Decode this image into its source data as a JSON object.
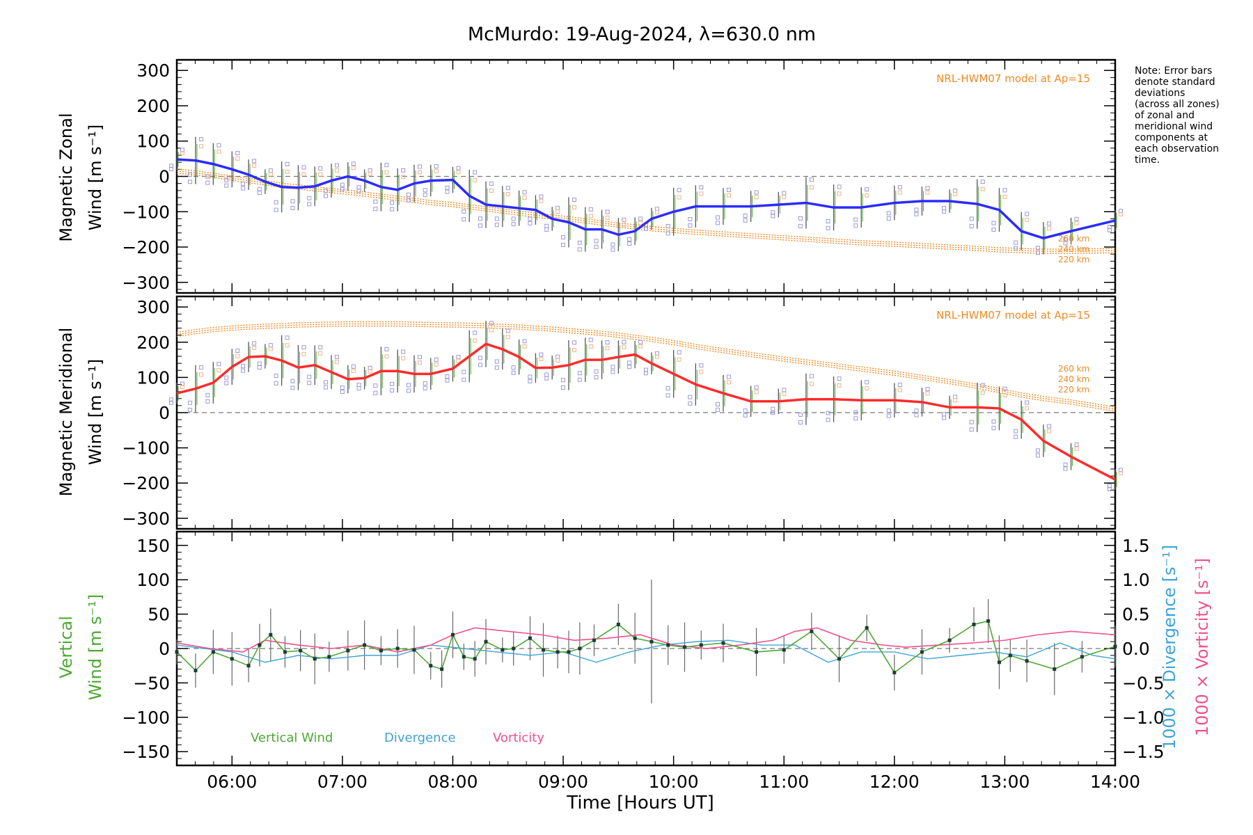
{
  "title": "McMurdo: 19-Aug-2024, λ=630.0 nm",
  "note": [
    "Note: Error bars",
    "denote standard",
    "deviations",
    "(across all zones)",
    "of zonal and",
    "meridional wind",
    "components at",
    "each observation",
    "time."
  ],
  "colors": {
    "zonal": "#2b2bff",
    "meridional": "#ff2a2a",
    "model": "#f08a24",
    "vertical": "#4da832",
    "divergence": "#3fa3d6",
    "vorticity": "#f0508c",
    "zones_blue": "#9999dd",
    "zones_orange": "#f5b08a",
    "errorbar": "#555555"
  },
  "chart_data": [
    {
      "type": "line",
      "ylabel": [
        "Magnetic Zonal",
        "Wind [m s⁻¹]"
      ],
      "ylim": [
        -330,
        330
      ],
      "yticks": [
        "300",
        "200",
        "100",
        "0",
        "−100",
        "−200",
        "−300"
      ],
      "model_label": "NRL-HWM07 model at Ap=15",
      "model_heights": [
        "260 km",
        "240 km",
        "220 km"
      ],
      "x": [
        5.5,
        5.67,
        5.83,
        6,
        6.15,
        6.3,
        6.45,
        6.6,
        6.75,
        6.9,
        7.05,
        7.2,
        7.35,
        7.5,
        7.65,
        7.8,
        8,
        8.15,
        8.3,
        8.45,
        8.6,
        8.75,
        8.9,
        9.05,
        9.2,
        9.35,
        9.5,
        9.65,
        9.8,
        10,
        10.2,
        10.45,
        10.7,
        10.95,
        11.2,
        11.45,
        11.7,
        12,
        12.25,
        12.5,
        12.75,
        12.95,
        13.15,
        13.35,
        13.6,
        14
      ],
      "series": [
        {
          "values": [
            48,
            45,
            35,
            20,
            5,
            -15,
            -30,
            -32,
            -28,
            -12,
            0,
            -12,
            -30,
            -38,
            -20,
            -12,
            -10,
            -55,
            -80,
            -85,
            -90,
            -95,
            -120,
            -130,
            -150,
            -150,
            -165,
            -155,
            -120,
            -100,
            -85,
            -85,
            -85,
            -80,
            -75,
            -88,
            -88,
            -75,
            -70,
            -70,
            -78,
            -95,
            -155,
            -175,
            -155,
            -125
          ]
        },
        {
          "values": [
            15,
            10,
            3,
            -5,
            -12,
            -18,
            -25,
            -30,
            -35,
            -40,
            -45,
            -50,
            -56,
            -62,
            -68,
            -74,
            -80,
            -86,
            -92,
            -98,
            -104,
            -110,
            -115,
            -120,
            -126,
            -132,
            -138,
            -143,
            -148,
            -153,
            -158,
            -163,
            -168,
            -173,
            -178,
            -183,
            -188,
            -192,
            -196,
            -200,
            -204,
            -208,
            -210,
            -212,
            -212,
            -210
          ]
        }
      ]
    },
    {
      "type": "line",
      "ylabel": [
        "Magnetic Meridional",
        "Wind [m s⁻¹]"
      ],
      "ylim": [
        -330,
        330
      ],
      "yticks": [
        "300",
        "200",
        "100",
        "0",
        "−100",
        "−200",
        "−300"
      ],
      "model_label": "NRL-HWM07 model at Ap=15",
      "model_heights": [
        "260 km",
        "240 km",
        "220 km"
      ],
      "x": [
        5.5,
        5.67,
        5.83,
        6,
        6.15,
        6.3,
        6.45,
        6.6,
        6.75,
        6.9,
        7.05,
        7.2,
        7.35,
        7.5,
        7.65,
        7.8,
        8,
        8.15,
        8.3,
        8.45,
        8.6,
        8.75,
        8.9,
        9.05,
        9.2,
        9.35,
        9.5,
        9.65,
        9.8,
        10,
        10.2,
        10.45,
        10.7,
        10.95,
        11.2,
        11.45,
        11.7,
        12,
        12.25,
        12.5,
        12.75,
        12.95,
        13.15,
        13.35,
        13.6,
        14
      ],
      "series": [
        {
          "values": [
            55,
            68,
            85,
            130,
            158,
            160,
            148,
            128,
            135,
            115,
            95,
            98,
            118,
            118,
            110,
            110,
            125,
            160,
            195,
            180,
            158,
            127,
            128,
            135,
            150,
            150,
            158,
            165,
            140,
            110,
            80,
            55,
            32,
            32,
            38,
            38,
            35,
            35,
            30,
            15,
            15,
            12,
            -20,
            -80,
            -125,
            -190
          ]
        },
        {
          "values": [
            222,
            230,
            236,
            240,
            243,
            245,
            247,
            249,
            250,
            251,
            252,
            252,
            252,
            252,
            251,
            250,
            249,
            248,
            247,
            245,
            243,
            240,
            237,
            233,
            229,
            225,
            220,
            214,
            208,
            199,
            188,
            176,
            165,
            154,
            144,
            134,
            124,
            112,
            100,
            88,
            75,
            63,
            50,
            40,
            30,
            10
          ]
        }
      ]
    },
    {
      "type": "line",
      "ylabel": [
        "Vertical",
        "Wind [m s⁻¹]"
      ],
      "ylim": [
        -170,
        170
      ],
      "yticks": [
        "150",
        "100",
        "50",
        "0",
        "−50",
        "−100",
        "−150"
      ],
      "y2label": [
        "1000 × Divergence [s⁻¹]",
        "1000 × Vorticity [s⁻¹]"
      ],
      "y2ticks": [
        "1.5",
        "1.0",
        "0.5",
        "0.0",
        "−0.5",
        "−1.0",
        "−1.5"
      ],
      "xticks": [
        "06:00",
        "07:00",
        "08:00",
        "09:00",
        "10:00",
        "11:00",
        "12:00",
        "13:00",
        "14:00"
      ],
      "xlim": [
        5.5,
        14.0
      ],
      "xlabel": "Time [Hours UT]",
      "legend": [
        "Vertical Wind",
        "Divergence",
        "Vorticity"
      ],
      "series": [
        {
          "x": [
            5.5,
            5.67,
            5.83,
            6,
            6.15,
            6.25,
            6.35,
            6.48,
            6.62,
            6.75,
            6.88,
            7.05,
            7.2,
            7.35,
            7.5,
            7.65,
            7.8,
            7.9,
            8,
            8.1,
            8.2,
            8.3,
            8.45,
            8.55,
            8.7,
            8.82,
            8.95,
            9.05,
            9.15,
            9.28,
            9.5,
            9.65,
            9.8,
            9.95,
            10.1,
            10.25,
            10.45,
            10.75,
            11,
            11.25,
            11.5,
            11.75,
            12,
            12.25,
            12.5,
            12.72,
            12.85,
            12.95,
            13.05,
            13.2,
            13.45,
            13.7,
            14
          ],
          "values": [
            -5,
            -32,
            -5,
            -15,
            -25,
            5,
            20,
            -5,
            -3,
            -15,
            -12,
            -3,
            5,
            -3,
            0,
            -2,
            -25,
            -30,
            20,
            -12,
            -15,
            10,
            -2,
            0,
            15,
            -2,
            -5,
            -5,
            0,
            12,
            35,
            15,
            10,
            5,
            2,
            5,
            8,
            -5,
            -2,
            25,
            -15,
            30,
            -35,
            -5,
            12,
            35,
            40,
            -20,
            -10,
            -18,
            -30,
            -12,
            3
          ]
        },
        {
          "x": [
            5.5,
            6,
            6.3,
            6.6,
            6.9,
            7.2,
            7.5,
            7.8,
            8.1,
            8.4,
            8.7,
            9,
            9.3,
            9.6,
            9.9,
            10.2,
            10.5,
            10.8,
            11.1,
            11.4,
            11.7,
            12,
            12.3,
            12.6,
            12.9,
            13.2,
            13.5,
            13.8,
            14
          ],
          "values": [
            0.05,
            -0.05,
            -0.2,
            -0.1,
            -0.15,
            -0.1,
            -0.1,
            0.05,
            0.0,
            -0.05,
            -0.1,
            -0.05,
            -0.2,
            -0.05,
            0.05,
            0.1,
            0.12,
            0.05,
            0.05,
            -0.2,
            -0.05,
            -0.05,
            -0.15,
            -0.1,
            -0.05,
            -0.12,
            0.08,
            -0.1,
            -0.15
          ]
        },
        {
          "x": [
            5.5,
            5.8,
            6.1,
            6.3,
            6.6,
            6.9,
            7.2,
            7.5,
            7.8,
            8.0,
            8.2,
            8.5,
            8.8,
            9.1,
            9.4,
            9.7,
            10.0,
            10.3,
            10.6,
            10.9,
            11.1,
            11.3,
            11.6,
            11.9,
            12.1,
            12.4,
            12.7,
            13.0,
            13.3,
            13.6,
            14
          ],
          "values": [
            0.08,
            0.0,
            -0.05,
            0.12,
            0.05,
            0.0,
            0.05,
            -0.05,
            0.05,
            0.2,
            0.3,
            0.25,
            0.2,
            0.12,
            0.15,
            0.2,
            0.05,
            0.0,
            0.05,
            0.12,
            0.25,
            0.3,
            0.12,
            0.05,
            0.02,
            0.05,
            0.08,
            0.12,
            0.2,
            0.25,
            0.2
          ]
        }
      ]
    }
  ]
}
